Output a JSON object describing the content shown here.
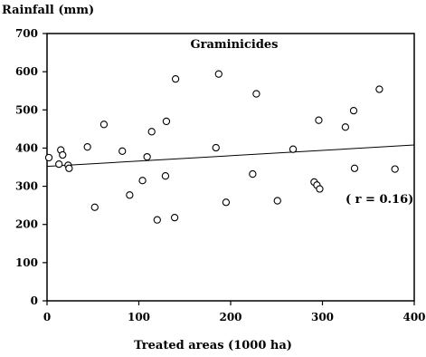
{
  "chart_data": {
    "type": "scatter",
    "title": "Graminicides",
    "ylabel": "Rainfall (mm)",
    "xlabel": "Treated areas (1000 ha)",
    "xlim": [
      0,
      400
    ],
    "ylim": [
      0,
      700
    ],
    "xticks": [
      0,
      100,
      200,
      300,
      400
    ],
    "yticks": [
      0,
      100,
      200,
      300,
      400,
      500,
      600,
      700
    ],
    "grid": false,
    "marker": "open-circle",
    "annotation": "( r = 0.16)",
    "trendline": {
      "x": [
        0,
        400
      ],
      "y": [
        352,
        408
      ]
    },
    "points": [
      {
        "x": 2,
        "y": 375
      },
      {
        "x": 13,
        "y": 358
      },
      {
        "x": 15,
        "y": 395
      },
      {
        "x": 17,
        "y": 382
      },
      {
        "x": 23,
        "y": 355
      },
      {
        "x": 24,
        "y": 347
      },
      {
        "x": 44,
        "y": 403
      },
      {
        "x": 52,
        "y": 245
      },
      {
        "x": 62,
        "y": 462
      },
      {
        "x": 82,
        "y": 392
      },
      {
        "x": 90,
        "y": 277
      },
      {
        "x": 104,
        "y": 315
      },
      {
        "x": 109,
        "y": 377
      },
      {
        "x": 114,
        "y": 443
      },
      {
        "x": 120,
        "y": 212
      },
      {
        "x": 129,
        "y": 327
      },
      {
        "x": 130,
        "y": 470
      },
      {
        "x": 139,
        "y": 218
      },
      {
        "x": 140,
        "y": 581
      },
      {
        "x": 184,
        "y": 401
      },
      {
        "x": 187,
        "y": 594
      },
      {
        "x": 195,
        "y": 258
      },
      {
        "x": 224,
        "y": 332
      },
      {
        "x": 228,
        "y": 542
      },
      {
        "x": 251,
        "y": 262
      },
      {
        "x": 268,
        "y": 397
      },
      {
        "x": 291,
        "y": 311
      },
      {
        "x": 294,
        "y": 303
      },
      {
        "x": 296,
        "y": 473
      },
      {
        "x": 297,
        "y": 293
      },
      {
        "x": 325,
        "y": 455
      },
      {
        "x": 334,
        "y": 498
      },
      {
        "x": 335,
        "y": 347
      },
      {
        "x": 362,
        "y": 554
      },
      {
        "x": 379,
        "y": 345
      }
    ]
  }
}
